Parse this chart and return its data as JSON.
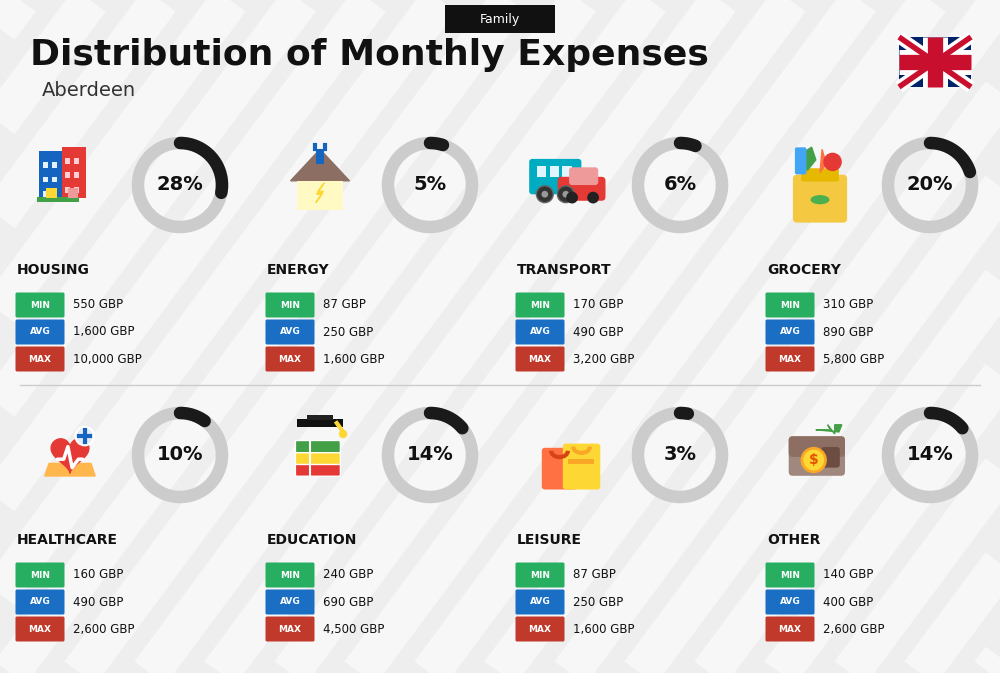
{
  "title": "Distribution of Monthly Expenses",
  "subtitle": "Aberdeen",
  "tag": "Family",
  "bg_color": "#eeeeee",
  "categories": [
    {
      "name": "HOUSING",
      "pct": 28,
      "min": "550 GBP",
      "avg": "1,600 GBP",
      "max": "10,000 GBP",
      "icon": "housing",
      "col": 0,
      "row": 0
    },
    {
      "name": "ENERGY",
      "pct": 5,
      "min": "87 GBP",
      "avg": "250 GBP",
      "max": "1,600 GBP",
      "icon": "energy",
      "col": 1,
      "row": 0
    },
    {
      "name": "TRANSPORT",
      "pct": 6,
      "min": "170 GBP",
      "avg": "490 GBP",
      "max": "3,200 GBP",
      "icon": "transport",
      "col": 2,
      "row": 0
    },
    {
      "name": "GROCERY",
      "pct": 20,
      "min": "310 GBP",
      "avg": "890 GBP",
      "max": "5,800 GBP",
      "icon": "grocery",
      "col": 3,
      "row": 0
    },
    {
      "name": "HEALTHCARE",
      "pct": 10,
      "min": "160 GBP",
      "avg": "490 GBP",
      "max": "2,600 GBP",
      "icon": "healthcare",
      "col": 0,
      "row": 1
    },
    {
      "name": "EDUCATION",
      "pct": 14,
      "min": "240 GBP",
      "avg": "690 GBP",
      "max": "4,500 GBP",
      "icon": "education",
      "col": 1,
      "row": 1
    },
    {
      "name": "LEISURE",
      "pct": 3,
      "min": "87 GBP",
      "avg": "250 GBP",
      "max": "1,600 GBP",
      "icon": "leisure",
      "col": 2,
      "row": 1
    },
    {
      "name": "OTHER",
      "pct": 14,
      "min": "140 GBP",
      "avg": "400 GBP",
      "max": "2,600 GBP",
      "icon": "other",
      "col": 3,
      "row": 1
    }
  ],
  "color_min": "#27ae60",
  "color_avg": "#1a6fc4",
  "color_max": "#c0392b",
  "arc_color_fill": "#1a1a1a",
  "arc_color_bg": "#cccccc"
}
